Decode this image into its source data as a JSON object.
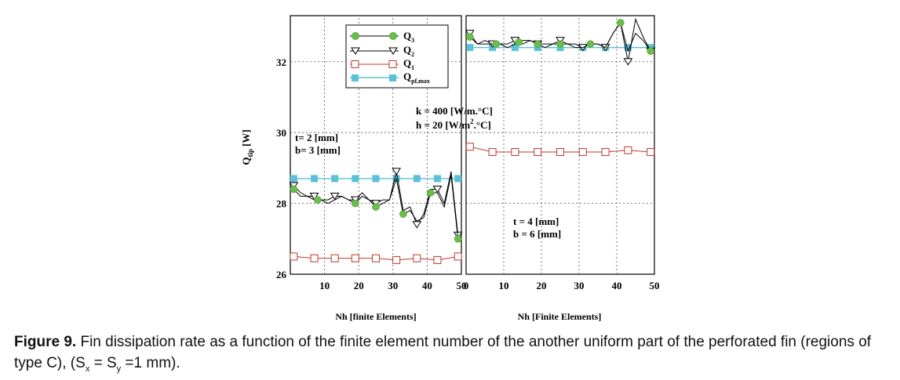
{
  "chart_data": [
    {
      "type": "line",
      "panel": "left",
      "xlabel": "Nh [finite Elements]",
      "ylabel": "Q_tip [W]",
      "ylabel_main": "Q",
      "ylabel_sub": "tip",
      "ylabel_unit": "[W]",
      "xlim": [
        0,
        50
      ],
      "ylim": [
        26,
        33.3
      ],
      "x_ticks": [
        10,
        20,
        30,
        40,
        50
      ],
      "y_ticks": [
        26,
        28,
        30,
        32
      ],
      "grid": true,
      "annotations": [
        "t= 2 [mm]",
        "b= 3 [mm]"
      ],
      "series": [
        {
          "name": "Q3",
          "color": "#000000",
          "marker": "circle-green",
          "x": [
            1,
            3,
            5,
            7,
            9,
            11,
            13,
            15,
            17,
            19,
            21,
            23,
            25,
            27,
            29,
            31,
            33,
            35,
            37,
            39,
            41,
            43,
            45,
            47,
            49
          ],
          "y": [
            28.4,
            28.2,
            28.2,
            28.1,
            28.1,
            28.0,
            28.1,
            28.2,
            28.1,
            28.0,
            28.2,
            28.1,
            27.9,
            28.0,
            28.1,
            28.7,
            27.7,
            27.8,
            27.5,
            27.6,
            28.3,
            28.3,
            27.9,
            28.8,
            27.0
          ],
          "marker_x": [
            1,
            8,
            19,
            25,
            33,
            41,
            49
          ]
        },
        {
          "name": "Q2",
          "color": "#000000",
          "marker": "triangle-down",
          "x": [
            1,
            3,
            5,
            7,
            9,
            11,
            13,
            15,
            17,
            19,
            21,
            23,
            25,
            27,
            29,
            31,
            33,
            35,
            37,
            39,
            41,
            43,
            45,
            47,
            49
          ],
          "y": [
            28.5,
            28.3,
            28.2,
            28.2,
            28.1,
            28.1,
            28.2,
            28.2,
            28.1,
            28.1,
            28.3,
            28.1,
            28.0,
            28.1,
            28.1,
            28.9,
            27.8,
            27.9,
            27.4,
            27.7,
            28.4,
            28.4,
            28.0,
            28.9,
            27.1
          ],
          "marker_x": [
            1,
            7,
            13,
            19,
            25,
            31,
            37,
            43,
            49
          ]
        },
        {
          "name": "Q1",
          "color": "#c0392b",
          "marker": "square-open",
          "x": [
            1,
            7,
            13,
            19,
            25,
            31,
            37,
            43,
            49
          ],
          "y": [
            26.5,
            26.45,
            26.45,
            26.45,
            26.45,
            26.4,
            26.45,
            26.4,
            26.5
          ],
          "marker_x": [
            1,
            7,
            13,
            19,
            25,
            31,
            37,
            43,
            49
          ]
        },
        {
          "name": "Qpf,max",
          "color": "#5bc0d8",
          "marker": "square-filled",
          "x": [
            1,
            7,
            13,
            19,
            25,
            31,
            37,
            43,
            49
          ],
          "y": [
            28.7,
            28.7,
            28.7,
            28.7,
            28.7,
            28.7,
            28.7,
            28.7,
            28.7
          ],
          "marker_x": [
            1,
            7,
            13,
            19,
            25,
            31,
            37,
            43,
            49
          ]
        }
      ]
    },
    {
      "type": "line",
      "panel": "right",
      "xlabel": "Nh [Finite Elements]",
      "xlim": [
        0,
        50
      ],
      "ylim": [
        26,
        33.3
      ],
      "x_ticks": [
        0,
        10,
        20,
        30,
        40,
        50
      ],
      "grid": true,
      "annotations": [
        "t = 4 [mm]",
        "b = 6 [mm]"
      ],
      "series": [
        {
          "name": "Q3",
          "color": "#000000",
          "marker": "circle-green",
          "x": [
            1,
            3,
            5,
            7,
            9,
            11,
            13,
            15,
            17,
            19,
            21,
            23,
            25,
            27,
            29,
            31,
            33,
            35,
            37,
            39,
            41,
            43,
            45,
            47,
            49
          ],
          "y": [
            32.7,
            32.5,
            32.5,
            32.5,
            32.5,
            32.4,
            32.5,
            32.6,
            32.6,
            32.5,
            32.4,
            32.5,
            32.5,
            32.5,
            32.4,
            32.4,
            32.5,
            32.5,
            32.4,
            32.8,
            33.1,
            32.3,
            32.8,
            32.6,
            32.3
          ],
          "marker_x": [
            1,
            8,
            14,
            19,
            25,
            33,
            41,
            49
          ]
        },
        {
          "name": "Q2",
          "color": "#000000",
          "marker": "triangle-down",
          "x": [
            1,
            3,
            5,
            7,
            9,
            11,
            13,
            15,
            17,
            19,
            21,
            23,
            25,
            27,
            29,
            31,
            33,
            35,
            37,
            39,
            41,
            43,
            45,
            47,
            49
          ],
          "y": [
            32.8,
            32.5,
            32.6,
            32.5,
            32.5,
            32.5,
            32.6,
            32.5,
            32.6,
            32.5,
            32.5,
            32.5,
            32.6,
            32.5,
            32.5,
            32.4,
            32.5,
            32.5,
            32.4,
            32.8,
            33.1,
            32.0,
            33.2,
            32.7,
            32.3
          ],
          "marker_x": [
            1,
            7,
            13,
            19,
            25,
            31,
            37,
            43,
            49
          ]
        },
        {
          "name": "Q1",
          "color": "#c0392b",
          "marker": "square-open",
          "x": [
            1,
            7,
            13,
            19,
            25,
            31,
            37,
            43,
            49
          ],
          "y": [
            29.6,
            29.45,
            29.45,
            29.45,
            29.45,
            29.45,
            29.45,
            29.5,
            29.45
          ],
          "marker_x": [
            1,
            7,
            13,
            19,
            25,
            31,
            37,
            43,
            49
          ]
        },
        {
          "name": "Qpf,max",
          "color": "#5bc0d8",
          "marker": "square-filled",
          "x": [
            1,
            7,
            13,
            19,
            25,
            31,
            37,
            43,
            49
          ],
          "y": [
            32.4,
            32.4,
            32.4,
            32.4,
            32.4,
            32.4,
            32.4,
            32.4,
            32.4
          ],
          "marker_x": [
            1,
            7,
            13,
            19,
            25,
            31,
            37,
            43,
            49
          ]
        }
      ]
    }
  ],
  "legend": {
    "placement": "top-right of left panel",
    "entries": [
      {
        "main": "Q",
        "sub": "3"
      },
      {
        "main": "Q",
        "sub": "2"
      },
      {
        "main": "Q",
        "sub": "1"
      },
      {
        "main": "Q",
        "sub": "pf,max"
      }
    ]
  },
  "center_annotation": {
    "line1": "k = 400 [W/m.°C]",
    "line2_pre": "h = 20 [W/m",
    "line2_sup": "2",
    "line2_post": ".°C]"
  },
  "caption": {
    "label": "Figure 9.",
    "text": " Fin dissipation rate as a function of the finite element number of the another uniform part of the perforated fin (regions of type C), (S",
    "sx_sub": "x",
    "mid": " = S",
    "sy_sub": "y",
    "end": " =1 mm)."
  }
}
